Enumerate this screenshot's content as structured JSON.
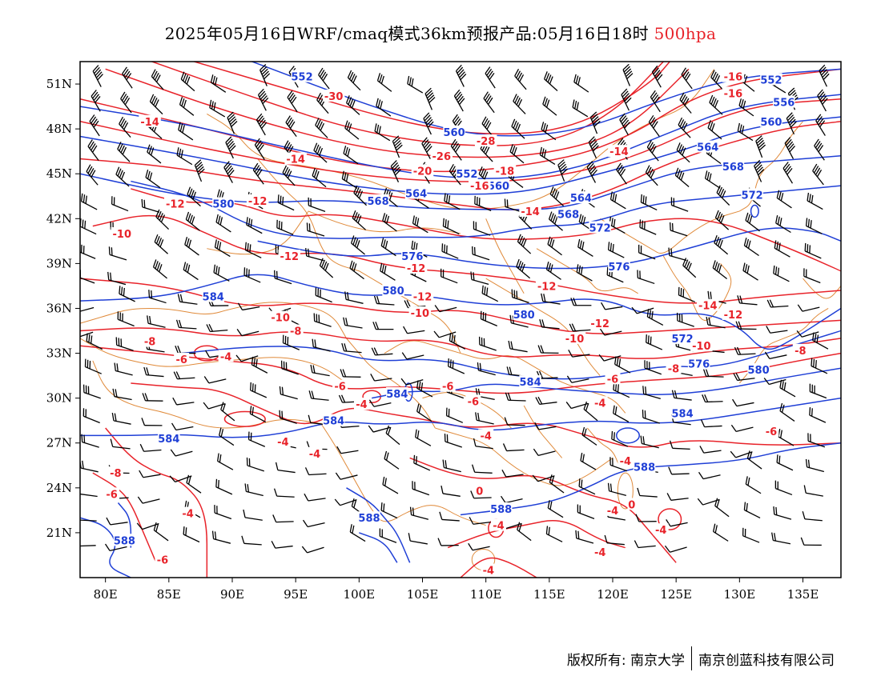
{
  "title": {
    "main": "2025年05月16日WRF/cmaq模式36km预报产品:05月16日18时",
    "level": "500hpa"
  },
  "colors": {
    "height_contour": "#1f3fd6",
    "temperature_contour": "#e8232a",
    "province_border": "#e08a3a",
    "wind_barb": "#000000"
  },
  "axes": {
    "lon_labels": [
      "80E",
      "85E",
      "90E",
      "95E",
      "100E",
      "105E",
      "110E",
      "115E",
      "120E",
      "125E",
      "130E",
      "135E"
    ],
    "lon_values": [
      80,
      85,
      90,
      95,
      100,
      105,
      110,
      115,
      120,
      125,
      130,
      135
    ],
    "lat_labels": [
      "51N",
      "48N",
      "45N",
      "42N",
      "39N",
      "36N",
      "33N",
      "30N",
      "27N",
      "24N",
      "21N"
    ],
    "lat_values": [
      51,
      48,
      45,
      42,
      39,
      36,
      33,
      30,
      27,
      24,
      21
    ],
    "lon_range": [
      78,
      138
    ],
    "lat_range": [
      18,
      52.5
    ]
  },
  "height_labels": [
    {
      "text": "552",
      "lon": 95.5,
      "lat": 51.5
    },
    {
      "text": "552",
      "lon": 108.5,
      "lat": 45.0
    },
    {
      "text": "560",
      "lon": 111.0,
      "lat": 44.2
    },
    {
      "text": "564",
      "lon": 104.5,
      "lat": 43.7
    },
    {
      "text": "568",
      "lon": 101.5,
      "lat": 43.2
    },
    {
      "text": "560",
      "lon": 107.5,
      "lat": 47.8
    },
    {
      "text": "564",
      "lon": 117.5,
      "lat": 43.4
    },
    {
      "text": "568",
      "lon": 116.5,
      "lat": 42.3
    },
    {
      "text": "572",
      "lon": 119.0,
      "lat": 41.4
    },
    {
      "text": "576",
      "lon": 104.2,
      "lat": 39.5
    },
    {
      "text": "576",
      "lon": 120.5,
      "lat": 38.8
    },
    {
      "text": "580",
      "lon": 102.7,
      "lat": 37.2
    },
    {
      "text": "580",
      "lon": 89.3,
      "lat": 43.0
    },
    {
      "text": "584",
      "lon": 88.5,
      "lat": 36.8
    },
    {
      "text": "580",
      "lon": 113.0,
      "lat": 35.6
    },
    {
      "text": "584",
      "lon": 113.5,
      "lat": 31.1
    },
    {
      "text": "584",
      "lon": 103.0,
      "lat": 30.3
    },
    {
      "text": "584",
      "lon": 98.0,
      "lat": 28.5
    },
    {
      "text": "584",
      "lon": 85.0,
      "lat": 27.3
    },
    {
      "text": "588",
      "lon": 100.8,
      "lat": 22.0
    },
    {
      "text": "588",
      "lon": 111.2,
      "lat": 22.6
    },
    {
      "text": "588",
      "lon": 81.5,
      "lat": 20.5
    },
    {
      "text": "588",
      "lon": 122.5,
      "lat": 25.4
    },
    {
      "text": "584",
      "lon": 125.5,
      "lat": 29.0
    },
    {
      "text": "580",
      "lon": 131.5,
      "lat": 31.9
    },
    {
      "text": "576",
      "lon": 126.8,
      "lat": 32.3
    },
    {
      "text": "572",
      "lon": 125.5,
      "lat": 34.0
    },
    {
      "text": "572",
      "lon": 131.0,
      "lat": 43.6
    },
    {
      "text": "568",
      "lon": 129.5,
      "lat": 45.5
    },
    {
      "text": "564",
      "lon": 127.5,
      "lat": 46.8
    },
    {
      "text": "560",
      "lon": 132.5,
      "lat": 48.5
    },
    {
      "text": "556",
      "lon": 133.5,
      "lat": 49.8
    },
    {
      "text": "552",
      "lon": 132.5,
      "lat": 51.3
    }
  ],
  "temp_labels": [
    {
      "text": "-30",
      "lon": 98.0,
      "lat": 50.2
    },
    {
      "text": "-28",
      "lon": 110.0,
      "lat": 47.2
    },
    {
      "text": "-26",
      "lon": 106.5,
      "lat": 46.2
    },
    {
      "text": "-20",
      "lon": 105.0,
      "lat": 45.2
    },
    {
      "text": "-18",
      "lon": 111.5,
      "lat": 45.2
    },
    {
      "text": "-16",
      "lon": 109.5,
      "lat": 44.2
    },
    {
      "text": "-14",
      "lon": 113.5,
      "lat": 42.5
    },
    {
      "text": "-14",
      "lon": 95.0,
      "lat": 46.0
    },
    {
      "text": "-14",
      "lon": 83.5,
      "lat": 48.5
    },
    {
      "text": "-12",
      "lon": 85.5,
      "lat": 43.0
    },
    {
      "text": "-12",
      "lon": 92.0,
      "lat": 43.2
    },
    {
      "text": "-10",
      "lon": 81.3,
      "lat": 41.0
    },
    {
      "text": "-12",
      "lon": 94.5,
      "lat": 39.5
    },
    {
      "text": "-12",
      "lon": 104.5,
      "lat": 38.7
    },
    {
      "text": "-12",
      "lon": 105.0,
      "lat": 36.8
    },
    {
      "text": "-12",
      "lon": 114.8,
      "lat": 37.5
    },
    {
      "text": "-12",
      "lon": 119.0,
      "lat": 35.0
    },
    {
      "text": "-10",
      "lon": 104.8,
      "lat": 35.7
    },
    {
      "text": "-10",
      "lon": 93.8,
      "lat": 35.4
    },
    {
      "text": "-10",
      "lon": 117.0,
      "lat": 34.0
    },
    {
      "text": "-8",
      "lon": 95.0,
      "lat": 34.5
    },
    {
      "text": "-8",
      "lon": 83.5,
      "lat": 33.8
    },
    {
      "text": "-6",
      "lon": 86.0,
      "lat": 32.6
    },
    {
      "text": "-4",
      "lon": 89.5,
      "lat": 32.8
    },
    {
      "text": "-6",
      "lon": 98.5,
      "lat": 30.8
    },
    {
      "text": "-4",
      "lon": 100.2,
      "lat": 29.6
    },
    {
      "text": "-6",
      "lon": 107.0,
      "lat": 30.8
    },
    {
      "text": "-6",
      "lon": 109.0,
      "lat": 29.8
    },
    {
      "text": "-4",
      "lon": 110.0,
      "lat": 27.5
    },
    {
      "text": "-4",
      "lon": 94.0,
      "lat": 27.1
    },
    {
      "text": "-4",
      "lon": 96.5,
      "lat": 26.3
    },
    {
      "text": "-6",
      "lon": 120.0,
      "lat": 31.3
    },
    {
      "text": "-8",
      "lon": 124.8,
      "lat": 32.0
    },
    {
      "text": "-10",
      "lon": 127.0,
      "lat": 33.5
    },
    {
      "text": "-14",
      "lon": 127.5,
      "lat": 36.2
    },
    {
      "text": "-12",
      "lon": 129.5,
      "lat": 35.6
    },
    {
      "text": "-4",
      "lon": 119.0,
      "lat": 29.7
    },
    {
      "text": "-6",
      "lon": 132.5,
      "lat": 27.8
    },
    {
      "text": "-8",
      "lon": 134.8,
      "lat": 33.2
    },
    {
      "text": "-4",
      "lon": 121.0,
      "lat": 25.8
    },
    {
      "text": "-4",
      "lon": 120.0,
      "lat": 22.5
    },
    {
      "text": "-4",
      "lon": 123.8,
      "lat": 21.2
    },
    {
      "text": "-4",
      "lon": 111.0,
      "lat": 21.5
    },
    {
      "text": "-4",
      "lon": 110.2,
      "lat": 18.5
    },
    {
      "text": "-4",
      "lon": 119.0,
      "lat": 19.7
    },
    {
      "text": "0",
      "lon": 121.5,
      "lat": 22.9
    },
    {
      "text": "0",
      "lon": 109.5,
      "lat": 23.8
    },
    {
      "text": "-6",
      "lon": 84.5,
      "lat": 19.2
    },
    {
      "text": "-6",
      "lon": 80.5,
      "lat": 23.6
    },
    {
      "text": "-8",
      "lon": 80.8,
      "lat": 25.0
    },
    {
      "text": "-4",
      "lon": 86.5,
      "lat": 22.3
    },
    {
      "text": "-16",
      "lon": 129.5,
      "lat": 51.5
    },
    {
      "text": "-16",
      "lon": 129.5,
      "lat": 50.4
    },
    {
      "text": "-14",
      "lon": 120.5,
      "lat": 46.5
    }
  ],
  "footer": {
    "copyright": "版权所有: 南京大学",
    "company": "南京创蓝科技有限公司"
  }
}
